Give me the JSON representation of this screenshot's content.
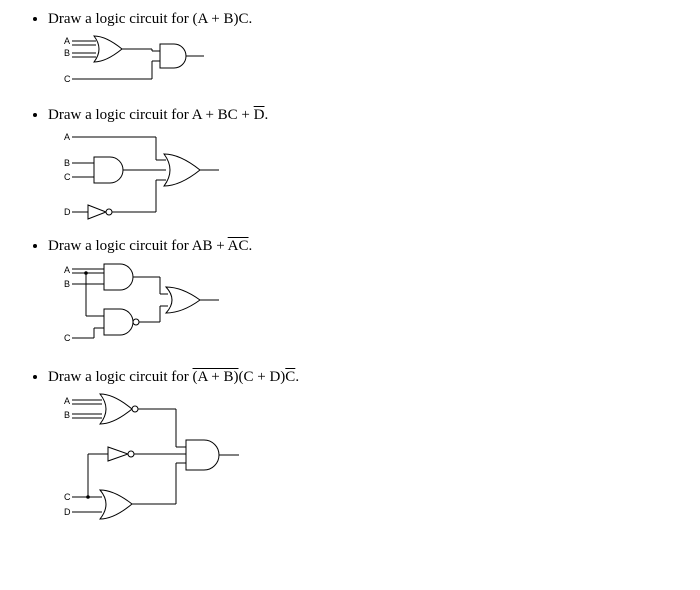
{
  "problems": [
    {
      "prompt_html": "Draw a logic circuit for (A + B)C.",
      "inputs": [
        "A",
        "B",
        "C"
      ],
      "circuit": {
        "labels": {
          "A": "A",
          "B": "B",
          "C": "C"
        },
        "gate1": "OR",
        "gate2": "AND",
        "svg": {
          "w": 170,
          "h": 60
        }
      }
    },
    {
      "prompt_html": "Draw a logic circuit for A + BC + <span class=\"overline\">D</span>.",
      "inputs": [
        "A",
        "B",
        "C",
        "D"
      ],
      "circuit": {
        "labels": {
          "A": "A",
          "B": "B",
          "C": "C",
          "D": "D"
        },
        "gate1": "AND",
        "invert": "D",
        "gate2": "OR3",
        "svg": {
          "w": 180,
          "h": 95
        }
      }
    },
    {
      "prompt_html": "Draw a logic circuit for AB + <span class=\"overline\">AC</span>.",
      "inputs": [
        "A",
        "B",
        "C"
      ],
      "circuit": {
        "labels": {
          "A": "A",
          "B": "B",
          "C": "C"
        },
        "gate1": "AND",
        "gate2": "NAND",
        "gate3": "OR",
        "svg": {
          "w": 180,
          "h": 95
        }
      }
    },
    {
      "prompt_html": "Draw a logic circuit for <span class=\"overline\">(A + B)</span>(C + D)<span class=\"overline\">C</span>.",
      "inputs": [
        "A",
        "B",
        "C",
        "D"
      ],
      "circuit": {
        "labels": {
          "A": "A",
          "B": "B",
          "C": "C",
          "D": "D"
        },
        "gate1": "NOR",
        "gate2": "NOT",
        "gate3": "OR",
        "gate4": "AND3",
        "svg": {
          "w": 195,
          "h": 130
        }
      }
    }
  ],
  "style": {
    "stroke": "#000000",
    "background": "#ffffff",
    "prompt_fontsize": 15,
    "label_fontsize": 9,
    "label_font": "Arial"
  }
}
